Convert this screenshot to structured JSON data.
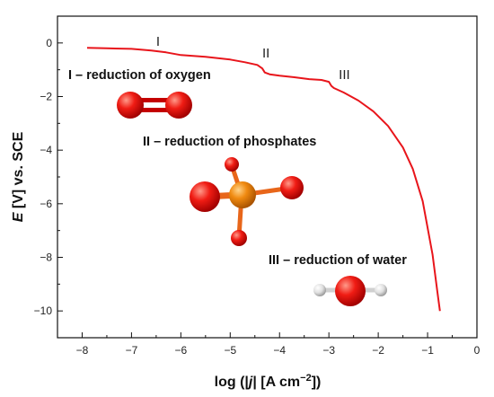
{
  "chart_data": {
    "type": "line",
    "xlabel_parts": [
      "log (|",
      "j",
      "| [A cm",
      "−2",
      "])"
    ],
    "ylabel_parts": [
      "E",
      " [V] vs. SCE"
    ],
    "xlim": [
      -8.5,
      0
    ],
    "ylim": [
      -11,
      1
    ],
    "x_ticks": [
      -8,
      -7,
      -6,
      -5,
      -4,
      -3,
      -2,
      -1,
      0
    ],
    "x_tick_labels": [
      "−8",
      "−7",
      "−6",
      "−5",
      "−4",
      "−3",
      "−2",
      "−1",
      "0"
    ],
    "y_ticks": [
      0,
      -2,
      -4,
      -6,
      -8,
      -10
    ],
    "y_tick_labels": [
      "0",
      "−2",
      "−4",
      "−6",
      "−8",
      "−10"
    ],
    "grid": false,
    "line_color": "#e8151b",
    "series": [
      {
        "x": [
          -7.9,
          -7.5,
          -7.0,
          -6.6,
          -6.3,
          -6.0,
          -5.5,
          -5.0,
          -4.7,
          -4.45,
          -4.35,
          -4.3,
          -4.2,
          -4.0,
          -3.7,
          -3.4,
          -3.15,
          -3.0,
          -2.95,
          -2.9,
          -2.7,
          -2.4,
          -2.1,
          -1.8,
          -1.5,
          -1.3,
          -1.1,
          -1.0,
          -0.9,
          -0.85,
          -0.8,
          -0.75
        ],
        "y": [
          -0.18,
          -0.2,
          -0.22,
          -0.28,
          -0.35,
          -0.45,
          -0.52,
          -0.62,
          -0.72,
          -0.82,
          -0.95,
          -1.1,
          -1.17,
          -1.22,
          -1.28,
          -1.35,
          -1.38,
          -1.45,
          -1.6,
          -1.68,
          -1.85,
          -2.15,
          -2.55,
          -3.1,
          -3.9,
          -4.7,
          -5.9,
          -6.9,
          -7.9,
          -8.6,
          -9.3,
          -10.0
        ]
      }
    ],
    "region_labels": [
      "I",
      "II",
      "III"
    ],
    "region_label_points": [
      [
        -6.5,
        -0.1
      ],
      [
        -4.35,
        -0.55
      ],
      [
        -2.8,
        -1.35
      ]
    ],
    "annotations": [
      "I – reduction of oxygen",
      "II – reduction of phosphates",
      "III – reduction of water"
    ]
  },
  "molecules": {
    "oxygen_color": "#ee1b14",
    "phosphorus_color": "#f08a10",
    "hydrogen_color": "#d8d8d8"
  }
}
